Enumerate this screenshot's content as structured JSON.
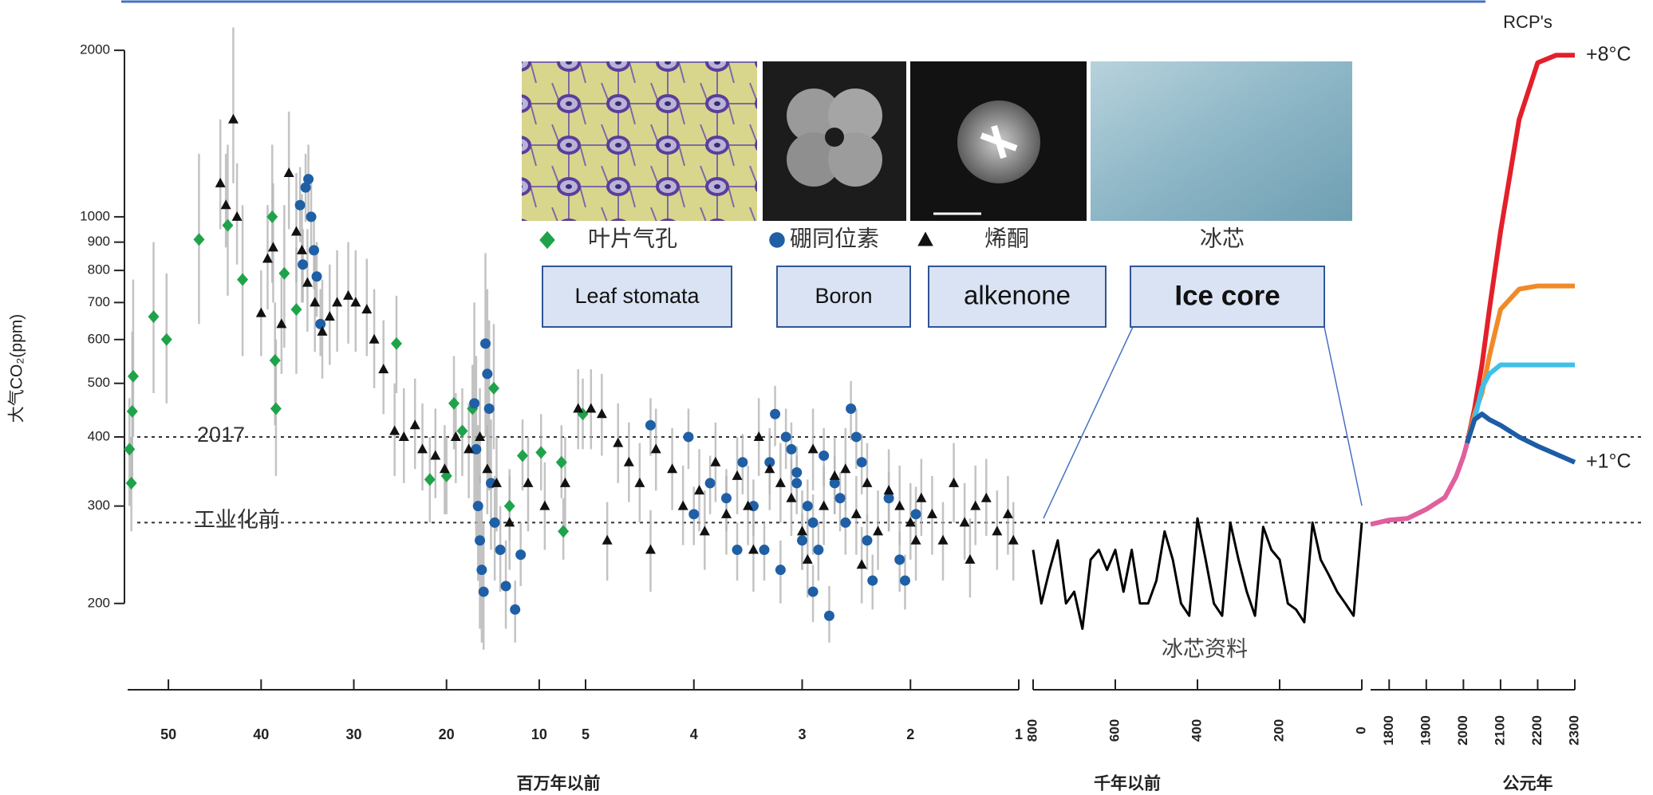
{
  "chart_data": [
    {
      "type": "scatter",
      "ylabel": "大气CO₂(ppm)",
      "ylog": true,
      "ylim": [
        160,
        2300
      ],
      "yticks": [
        200,
        300,
        400,
        500,
        600,
        700,
        800,
        900,
        1000,
        2000
      ],
      "xlabel": "百万年以前",
      "xlim": [
        55,
        5
      ],
      "xticks": [
        50,
        40,
        30,
        20,
        10
      ],
      "reference_lines": [
        {
          "value": 400,
          "label": "2017"
        },
        {
          "value": 280,
          "label": "工业化前"
        }
      ],
      "series": [
        {
          "name": "叶片气孔",
          "name_en": "Leaf stomata",
          "color": "#1fa34a",
          "marker": "diamond",
          "x": [
            54.2,
            54,
            53.9,
            53.8,
            51.6,
            50.2,
            46.7,
            43.6,
            42,
            38.8,
            38.5,
            38.4,
            37.5,
            36.2,
            25.4,
            21.8,
            20,
            19.2,
            18.3,
            17.2,
            14.9,
            13.2,
            11.8,
            9.8,
            7.6,
            7.4,
            5.3
          ],
          "values": [
            380,
            330,
            445,
            515,
            660,
            600,
            910,
            965,
            770,
            1000,
            550,
            450,
            790,
            680,
            590,
            335,
            340,
            460,
            410,
            450,
            490,
            300,
            370,
            375,
            360,
            270,
            440
          ],
          "low": [
            300,
            270,
            330,
            400,
            480,
            460,
            640,
            720,
            560,
            760,
            420,
            340,
            580,
            520,
            480,
            280,
            290,
            380,
            340,
            380,
            380,
            260,
            320,
            320,
            310,
            240,
            380
          ],
          "high": [
            470,
            400,
            620,
            770,
            900,
            790,
            1300,
            1350,
            1050,
            1350,
            700,
            600,
            1050,
            880,
            720,
            400,
            400,
            560,
            490,
            540,
            640,
            350,
            430,
            440,
            420,
            310,
            510
          ]
        },
        {
          "name": "硼同位素",
          "name_en": "Boron",
          "color": "#1f5fa6",
          "marker": "circle",
          "x": [
            35.8,
            35.5,
            35.2,
            34.9,
            34.6,
            34.3,
            34,
            33.6,
            17,
            16.8,
            16.6,
            16.4,
            16.2,
            16,
            15.8,
            15.6,
            15.4,
            15.2,
            14.8,
            14.2,
            13.6,
            12.6,
            12
          ],
          "values": [
            1050,
            820,
            1130,
            1170,
            1000,
            870,
            780,
            640,
            460,
            380,
            300,
            260,
            230,
            210,
            590,
            520,
            450,
            330,
            280,
            250,
            215,
            195,
            245
          ],
          "low": [
            900,
            700,
            980,
            1000,
            860,
            740,
            660,
            560,
            300,
            260,
            220,
            180,
            170,
            165,
            400,
            360,
            320,
            250,
            220,
            210,
            180,
            170,
            215
          ],
          "high": [
            1230,
            950,
            1300,
            1350,
            1150,
            1000,
            900,
            740,
            700,
            560,
            420,
            340,
            300,
            280,
            860,
            740,
            650,
            430,
            340,
            300,
            260,
            220,
            280
          ]
        },
        {
          "name": "烯酮",
          "name_en": "alkenone",
          "color": "#111111",
          "marker": "triangle",
          "x": [
            44.4,
            43.8,
            43,
            42.6,
            40,
            39.3,
            38.7,
            37.8,
            37,
            36.2,
            35.6,
            35,
            34.2,
            33.4,
            32.6,
            31.8,
            30.6,
            29.8,
            28.6,
            27.8,
            26.8,
            25.6,
            24.6,
            23.4,
            22.6,
            21.2,
            20.2,
            19,
            17.6,
            16.4,
            15.6,
            14.6,
            13.2,
            11.2,
            9.4,
            7.2,
            5.8
          ],
          "values": [
            1150,
            1050,
            1500,
            1000,
            670,
            840,
            880,
            640,
            1200,
            940,
            870,
            760,
            700,
            620,
            660,
            700,
            720,
            700,
            680,
            600,
            530,
            410,
            400,
            420,
            380,
            370,
            350,
            400,
            380,
            400,
            350,
            330,
            280,
            330,
            300,
            330,
            450
          ],
          "low": [
            950,
            880,
            1150,
            820,
            560,
            680,
            700,
            520,
            950,
            760,
            700,
            620,
            570,
            510,
            540,
            570,
            590,
            570,
            560,
            490,
            440,
            340,
            330,
            350,
            320,
            310,
            290,
            330,
            310,
            330,
            290,
            270,
            230,
            270,
            250,
            270,
            380
          ],
          "high": [
            1500,
            1300,
            2200,
            1250,
            800,
            1050,
            1150,
            780,
            1550,
            1200,
            1100,
            950,
            870,
            770,
            820,
            870,
            900,
            870,
            840,
            740,
            650,
            500,
            490,
            510,
            460,
            450,
            420,
            480,
            460,
            490,
            420,
            400,
            340,
            400,
            360,
            400,
            530
          ]
        }
      ]
    },
    {
      "type": "scatter",
      "ylog": true,
      "ylim": [
        160,
        2300
      ],
      "xlim": [
        5,
        1
      ],
      "xticks": [
        5,
        4,
        3,
        2,
        1
      ],
      "series": [
        {
          "color": "#1f5fa6",
          "marker": "circle",
          "x": [
            4.4,
            4.05,
            3.85,
            3.7,
            3.6,
            3.45,
            3.3,
            3.25,
            3.15,
            3.1,
            3.05,
            3.0,
            2.95,
            2.9,
            2.85,
            2.8,
            2.7,
            2.65,
            2.6,
            2.55,
            2.5,
            2.45,
            2.4,
            2.35,
            2.2,
            2.1,
            2.05,
            1.95,
            4.0,
            3.55,
            3.35,
            3.2,
            2.75,
            2.9,
            3.05
          ],
          "values": [
            420,
            400,
            330,
            310,
            250,
            300,
            360,
            440,
            400,
            380,
            330,
            260,
            300,
            210,
            250,
            370,
            330,
            310,
            280,
            450,
            400,
            360,
            260,
            220,
            310,
            240,
            220,
            290,
            290,
            360,
            250,
            230,
            190,
            280,
            345
          ],
          "low": [
            370,
            350,
            290,
            270,
            220,
            265,
            315,
            385,
            350,
            335,
            290,
            230,
            265,
            185,
            220,
            325,
            290,
            270,
            245,
            395,
            350,
            315,
            230,
            195,
            270,
            210,
            195,
            255,
            255,
            315,
            220,
            200,
            170,
            245,
            305
          ],
          "high": [
            470,
            450,
            370,
            350,
            280,
            335,
            405,
            495,
            450,
            425,
            370,
            290,
            335,
            235,
            280,
            415,
            370,
            345,
            315,
            505,
            450,
            405,
            290,
            245,
            345,
            270,
            245,
            325,
            325,
            405,
            280,
            260,
            215,
            315,
            385
          ]
        },
        {
          "color": "#111111",
          "marker": "triangle",
          "x": [
            4.95,
            4.85,
            4.7,
            4.6,
            4.5,
            4.35,
            4.2,
            4.1,
            3.95,
            3.8,
            3.7,
            3.6,
            3.5,
            3.4,
            3.3,
            3.2,
            3.1,
            3.0,
            2.9,
            2.8,
            2.7,
            2.6,
            2.5,
            2.4,
            2.3,
            2.2,
            2.1,
            2.0,
            1.9,
            1.8,
            1.7,
            1.6,
            1.5,
            1.4,
            1.3,
            1.2,
            1.1,
            1.05,
            4.8,
            4.4,
            3.9,
            3.45,
            2.95,
            2.45,
            1.95,
            1.45
          ],
          "values": [
            450,
            440,
            390,
            360,
            330,
            380,
            350,
            300,
            320,
            360,
            290,
            340,
            300,
            400,
            350,
            330,
            310,
            270,
            380,
            300,
            340,
            350,
            290,
            330,
            270,
            320,
            300,
            280,
            310,
            290,
            260,
            330,
            280,
            300,
            310,
            270,
            290,
            260,
            260,
            250,
            270,
            250,
            240,
            235,
            260,
            240
          ],
          "low": [
            380,
            370,
            330,
            305,
            280,
            320,
            295,
            255,
            270,
            305,
            245,
            290,
            255,
            340,
            295,
            280,
            265,
            230,
            320,
            255,
            290,
            295,
            245,
            280,
            230,
            270,
            255,
            240,
            265,
            245,
            220,
            280,
            240,
            255,
            265,
            230,
            245,
            220,
            220,
            210,
            230,
            210,
            205,
            200,
            220,
            205
          ],
          "high": [
            530,
            520,
            460,
            425,
            390,
            450,
            415,
            355,
            380,
            425,
            340,
            400,
            355,
            470,
            415,
            390,
            365,
            320,
            450,
            355,
            400,
            415,
            340,
            390,
            320,
            380,
            355,
            330,
            365,
            340,
            305,
            390,
            330,
            355,
            365,
            320,
            340,
            305,
            305,
            295,
            320,
            295,
            285,
            275,
            305,
            285
          ]
        }
      ]
    },
    {
      "type": "line",
      "ylog": true,
      "ylim": [
        160,
        2300
      ],
      "xlabel": "千年以前",
      "xlim": [
        800,
        0
      ],
      "xticks": [
        800,
        600,
        400,
        200,
        0
      ],
      "xtick_rotation": -90,
      "annotation": "冰芯资料",
      "series": [
        {
          "name": "冰芯",
          "name_en": "Ice core",
          "color": "#000000",
          "x": [
            800,
            780,
            760,
            740,
            720,
            700,
            680,
            660,
            640,
            620,
            600,
            580,
            560,
            540,
            520,
            500,
            480,
            460,
            440,
            420,
            400,
            380,
            360,
            340,
            320,
            300,
            280,
            260,
            240,
            220,
            200,
            180,
            160,
            140,
            120,
            100,
            80,
            60,
            40,
            20,
            0
          ],
          "values": [
            250,
            200,
            230,
            260,
            200,
            210,
            180,
            240,
            250,
            230,
            250,
            210,
            250,
            200,
            200,
            220,
            270,
            240,
            200,
            190,
            285,
            240,
            200,
            190,
            280,
            240,
            210,
            190,
            275,
            250,
            240,
            200,
            195,
            185,
            280,
            240,
            225,
            210,
            200,
            190,
            280
          ]
        }
      ]
    },
    {
      "type": "line",
      "ylog": true,
      "ylim": [
        160,
        2300
      ],
      "xlabel": "公元年",
      "xlim": [
        1750,
        2300
      ],
      "xticks": [
        1800,
        1900,
        2000,
        2100,
        2200,
        2300
      ],
      "xtick_rotation": -90,
      "legend_title": "RCP's",
      "series": [
        {
          "color": "#e0609e",
          "x": [
            1750,
            1800,
            1850,
            1900,
            1950,
            1980,
            2000,
            2010
          ],
          "values": [
            278,
            283,
            285,
            296,
            311,
            339,
            369,
            390
          ]
        },
        {
          "color": "#e3202a",
          "end_label": "+8°C",
          "x": [
            2010,
            2030,
            2050,
            2070,
            2100,
            2150,
            2200,
            2250,
            2300
          ],
          "values": [
            390,
            450,
            540,
            680,
            940,
            1500,
            1900,
            1960,
            1960
          ]
        },
        {
          "color": "#f08a28",
          "x": [
            2010,
            2030,
            2050,
            2070,
            2100,
            2150,
            2200,
            2300
          ],
          "values": [
            390,
            440,
            480,
            560,
            680,
            740,
            750,
            750
          ]
        },
        {
          "color": "#3fc0ea",
          "x": [
            2010,
            2030,
            2050,
            2070,
            2100,
            2150,
            2300
          ],
          "values": [
            390,
            430,
            490,
            520,
            540,
            540,
            540
          ]
        },
        {
          "color": "#1d5ca6",
          "end_label": "+1°C",
          "x": [
            2010,
            2030,
            2050,
            2070,
            2100,
            2150,
            2200,
            2300
          ],
          "values": [
            390,
            430,
            440,
            430,
            420,
            400,
            385,
            360
          ]
        }
      ]
    }
  ]
}
